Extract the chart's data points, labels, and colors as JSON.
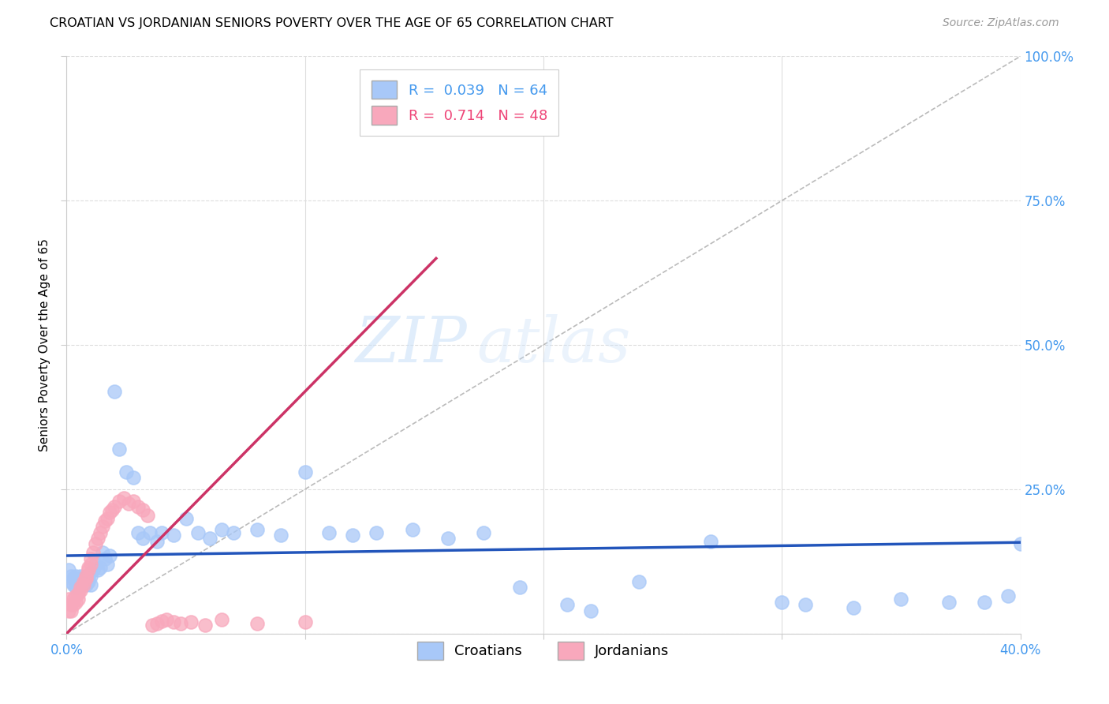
{
  "title": "CROATIAN VS JORDANIAN SENIORS POVERTY OVER THE AGE OF 65 CORRELATION CHART",
  "source": "Source: ZipAtlas.com",
  "ylabel": "Seniors Poverty Over the Age of 65",
  "xlim": [
    0.0,
    0.4
  ],
  "ylim": [
    0.0,
    1.0
  ],
  "xticks": [
    0.0,
    0.1,
    0.2,
    0.3,
    0.4
  ],
  "xtick_labels": [
    "0.0%",
    "",
    "",
    "",
    "40.0%"
  ],
  "yticks": [
    0.0,
    0.25,
    0.5,
    0.75,
    1.0
  ],
  "ytick_labels": [
    "",
    "25.0%",
    "50.0%",
    "75.0%",
    "100.0%"
  ],
  "croatian_color": "#A8C8F8",
  "jordanian_color": "#F8A8BC",
  "croatian_edge_color": "#A8C8F8",
  "jordanian_edge_color": "#F8A8BC",
  "croatian_R": 0.039,
  "croatian_N": 64,
  "jordanian_R": 0.714,
  "jordanian_N": 48,
  "legend_label_croatian": "Croatians",
  "legend_label_jordanian": "Jordanians",
  "diagonal_line_color": "#BBBBBB",
  "croatian_trend_color": "#2255BB",
  "jordanian_trend_color": "#CC3366",
  "watermark_zip": "ZIP",
  "watermark_atlas": "atlas",
  "tick_color": "#4499EE",
  "grid_color": "#DDDDDD",
  "title_fontsize": 11.5,
  "source_fontsize": 10,
  "axis_fontsize": 12,
  "legend_fontsize": 13,
  "cro_x": [
    0.001,
    0.002,
    0.002,
    0.003,
    0.003,
    0.004,
    0.004,
    0.005,
    0.005,
    0.006,
    0.006,
    0.007,
    0.007,
    0.008,
    0.008,
    0.009,
    0.009,
    0.01,
    0.01,
    0.011,
    0.012,
    0.013,
    0.014,
    0.015,
    0.016,
    0.017,
    0.018,
    0.02,
    0.022,
    0.025,
    0.028,
    0.03,
    0.032,
    0.035,
    0.038,
    0.04,
    0.045,
    0.05,
    0.055,
    0.06,
    0.065,
    0.07,
    0.08,
    0.09,
    0.1,
    0.11,
    0.12,
    0.13,
    0.145,
    0.16,
    0.175,
    0.19,
    0.21,
    0.22,
    0.24,
    0.27,
    0.3,
    0.31,
    0.33,
    0.35,
    0.37,
    0.385,
    0.395,
    0.4
  ],
  "cro_y": [
    0.11,
    0.09,
    0.1,
    0.085,
    0.095,
    0.08,
    0.1,
    0.09,
    0.085,
    0.095,
    0.1,
    0.09,
    0.095,
    0.085,
    0.1,
    0.09,
    0.095,
    0.1,
    0.085,
    0.11,
    0.12,
    0.11,
    0.115,
    0.14,
    0.13,
    0.12,
    0.135,
    0.42,
    0.32,
    0.28,
    0.27,
    0.175,
    0.165,
    0.175,
    0.16,
    0.175,
    0.17,
    0.2,
    0.175,
    0.165,
    0.18,
    0.175,
    0.18,
    0.17,
    0.28,
    0.175,
    0.17,
    0.175,
    0.18,
    0.165,
    0.175,
    0.08,
    0.05,
    0.04,
    0.09,
    0.16,
    0.055,
    0.05,
    0.045,
    0.06,
    0.055,
    0.055,
    0.065,
    0.155
  ],
  "jor_x": [
    0.001,
    0.001,
    0.002,
    0.002,
    0.003,
    0.003,
    0.004,
    0.004,
    0.005,
    0.005,
    0.006,
    0.006,
    0.007,
    0.007,
    0.008,
    0.008,
    0.009,
    0.009,
    0.01,
    0.01,
    0.011,
    0.012,
    0.013,
    0.014,
    0.015,
    0.016,
    0.017,
    0.018,
    0.019,
    0.02,
    0.022,
    0.024,
    0.026,
    0.028,
    0.03,
    0.032,
    0.034,
    0.036,
    0.038,
    0.04,
    0.042,
    0.045,
    0.048,
    0.052,
    0.058,
    0.065,
    0.08,
    0.1
  ],
  "jor_y": [
    0.06,
    0.04,
    0.05,
    0.04,
    0.06,
    0.05,
    0.055,
    0.065,
    0.07,
    0.06,
    0.075,
    0.08,
    0.085,
    0.09,
    0.095,
    0.1,
    0.11,
    0.115,
    0.12,
    0.13,
    0.14,
    0.155,
    0.165,
    0.175,
    0.185,
    0.195,
    0.2,
    0.21,
    0.215,
    0.22,
    0.23,
    0.235,
    0.225,
    0.23,
    0.22,
    0.215,
    0.205,
    0.015,
    0.018,
    0.022,
    0.025,
    0.02,
    0.018,
    0.02,
    0.015,
    0.025,
    0.018,
    0.02
  ],
  "cro_trend_x": [
    0.0,
    0.4
  ],
  "cro_trend_y": [
    0.135,
    0.158
  ],
  "jor_trend_x": [
    0.0,
    0.155
  ],
  "jor_trend_y": [
    0.0,
    0.65
  ]
}
